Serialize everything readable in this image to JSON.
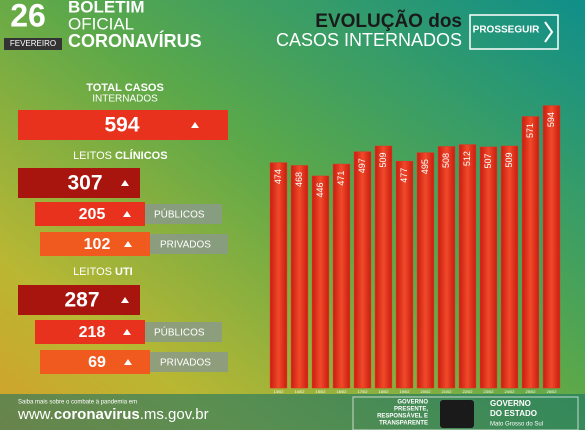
{
  "header": {
    "day": "26",
    "month": "FEVEREIRO",
    "line1": "BOLETIM",
    "line2": "OFICIAL",
    "line3": "CORONAVÍRUS",
    "brand": "PROSSEGUIR"
  },
  "summary": {
    "total_title": "TOTAL CASOS",
    "total_subtitle": "INTERNADOS",
    "total": 594,
    "clinical_prefix": "LEITOS",
    "clinical_title": "CLÍNICOS",
    "clinical_total": 307,
    "clinical_public": 205,
    "clinical_private": 102,
    "icu_prefix": "LEITOS",
    "icu_title": "UTI",
    "icu_total": 287,
    "icu_public": 218,
    "icu_private": 69,
    "public_label": "PÚBLICOS",
    "private_label": "PRIVADOS"
  },
  "chart_data": {
    "type": "bar",
    "title": "EVOLUÇÃO dos",
    "subtitle": "CASOS INTERNADOS",
    "categories": [
      "13/02",
      "14/02",
      "15/02",
      "16/02",
      "17/02",
      "18/02",
      "19/02",
      "20/02",
      "21/02",
      "22/02",
      "23/02",
      "24/02",
      "25/02",
      "26/02"
    ],
    "values": [
      474,
      468,
      446,
      471,
      497,
      509,
      477,
      495,
      508,
      512,
      507,
      509,
      571,
      594
    ],
    "color": "#e8321e",
    "ylim": [
      0,
      610
    ]
  },
  "footer": {
    "note": "Saiba mais sobre o combate à pandemia em",
    "url_prefix": "www.",
    "url_bold": "coronavirus",
    "url_suffix": ".ms.gov.br",
    "slogan1": "GOVERNO",
    "slogan2": "PRESENTE,",
    "slogan3": "RESPONSÁVEL E",
    "slogan4": "TRANSPARENTE",
    "gov1": "GOVERNO",
    "gov2": "DO ESTADO",
    "gov3": "Mato Grosso do Sul"
  }
}
